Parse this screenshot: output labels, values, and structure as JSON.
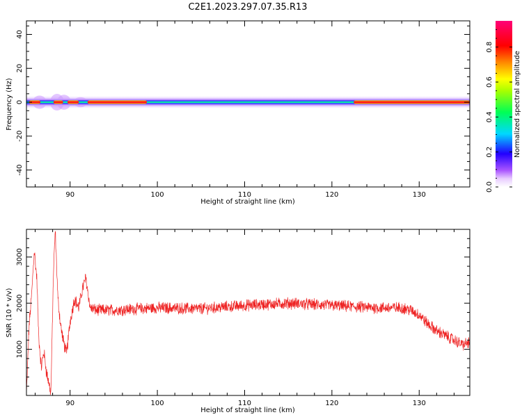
{
  "title": "C2E1.2023.297.07.35.R13",
  "colors": {
    "snr_line": "#ee2222",
    "frame": "#000000"
  },
  "chart_data": [
    {
      "type": "heatmap",
      "name": "spectrogram",
      "xlabel": "Height of straight line (km)",
      "ylabel": "Frequency (Hz)",
      "xlim": [
        85,
        135.8
      ],
      "ylim": [
        -50,
        48
      ],
      "xticks": [
        90,
        100,
        110,
        120,
        130
      ],
      "yticks": [
        40,
        20,
        0,
        -20,
        -40
      ],
      "ytick_labels": [
        "40",
        "20",
        "0",
        "-20",
        "-40"
      ],
      "center_frequency_hz": 0,
      "bright_segments_km": [
        [
          85.3,
          86.6
        ],
        [
          88.1,
          89.2
        ],
        [
          89.7,
          91.0
        ],
        [
          92.0,
          98.8
        ],
        [
          122.5,
          135.8
        ]
      ],
      "colorbar": {
        "label": "Normalized spectral amplitude",
        "range": [
          0.0,
          0.95
        ],
        "ticks": [
          0.0,
          0.2,
          0.4,
          0.6,
          0.8
        ],
        "tick_labels": [
          "0.0",
          "0.2",
          "0.4",
          "0.6",
          "0.8"
        ],
        "colormap": "rainbow (white to violet to blue to cyan to green to yellow to orange to red to magenta)"
      }
    },
    {
      "type": "line",
      "name": "snr",
      "xlabel": "Height of straight line (km)",
      "ylabel": "SNR (10 * v/v)",
      "xlim": [
        85,
        135.8
      ],
      "ylim": [
        0,
        3600
      ],
      "xticks": [
        90,
        100,
        110,
        120,
        130
      ],
      "yticks": [
        1000,
        2000,
        3000
      ],
      "ytick_labels": [
        "1000",
        "2000",
        "3000"
      ],
      "series": [
        {
          "x": [
            85.0,
            85.3,
            85.6,
            85.9,
            86.2,
            86.4,
            86.7,
            87.0,
            87.3,
            87.6,
            87.8,
            88.1,
            88.3,
            88.6,
            88.9,
            89.2,
            89.6,
            90.0,
            90.5,
            91.0,
            91.4,
            91.8,
            92.3,
            93.0,
            95.0,
            100.0,
            105.0,
            110.0,
            115.0,
            120.0,
            125.0,
            128.0,
            129.0,
            130.0,
            131.0,
            132.0,
            133.0,
            134.0,
            135.0,
            135.8
          ],
          "y": [
            0,
            1500,
            2200,
            3150,
            2500,
            1300,
            600,
            950,
            500,
            250,
            40,
            2700,
            3580,
            2100,
            1550,
            1200,
            900,
            1600,
            2100,
            1900,
            2300,
            2550,
            1900,
            1850,
            1850,
            1900,
            1880,
            1950,
            2000,
            1950,
            1900,
            1900,
            1850,
            1750,
            1550,
            1400,
            1300,
            1200,
            1100,
            1150
          ]
        }
      ]
    }
  ]
}
